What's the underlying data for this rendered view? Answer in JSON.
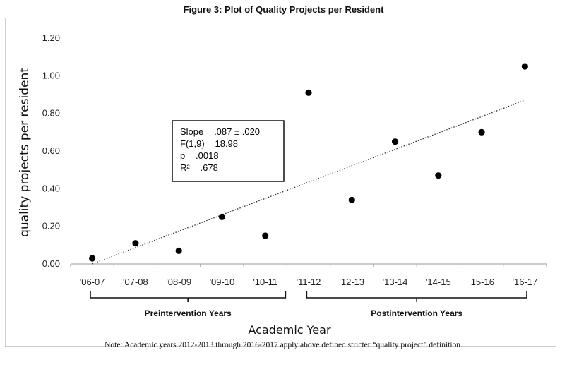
{
  "figure_title": "Figure 3: Plot of Quality Projects per Resident",
  "note": "Note: Academic years 2012-2013 through 2016-2017 apply above defined stricter “quality project” definition.",
  "chart_data": {
    "type": "scatter",
    "title": "Figure 3: Plot of Quality Projects per Resident",
    "xlabel": "Academic Year",
    "ylabel": "quality projects per resident",
    "categories": [
      "'06-07",
      "'07-08",
      "'08-09",
      "'09-10",
      "'10-11",
      "'11-12",
      "'12-13",
      "'13-14",
      "'14-15",
      "'15-16",
      "'16-17"
    ],
    "values": [
      0.03,
      0.11,
      0.07,
      0.25,
      0.15,
      0.91,
      0.34,
      0.65,
      0.47,
      0.7,
      1.05
    ],
    "ylim": [
      0,
      1.2
    ],
    "yticks": [
      "0.00",
      "0.20",
      "0.40",
      "0.60",
      "0.80",
      "1.00",
      "1.20"
    ],
    "trendline": {
      "type": "linear",
      "style": "dotted",
      "start": 0.0,
      "end": 0.87
    },
    "annotation": [
      "Slope = .087 ± .020",
      "F(1,9) = 18.98",
      "p = .0018",
      "R² = .678"
    ],
    "groups": [
      {
        "label": "Preintervention Years",
        "from": 0,
        "to": 4
      },
      {
        "label": "Postintervention Years",
        "from": 5,
        "to": 10
      }
    ],
    "grid": false,
    "marker_color": "#000000"
  }
}
